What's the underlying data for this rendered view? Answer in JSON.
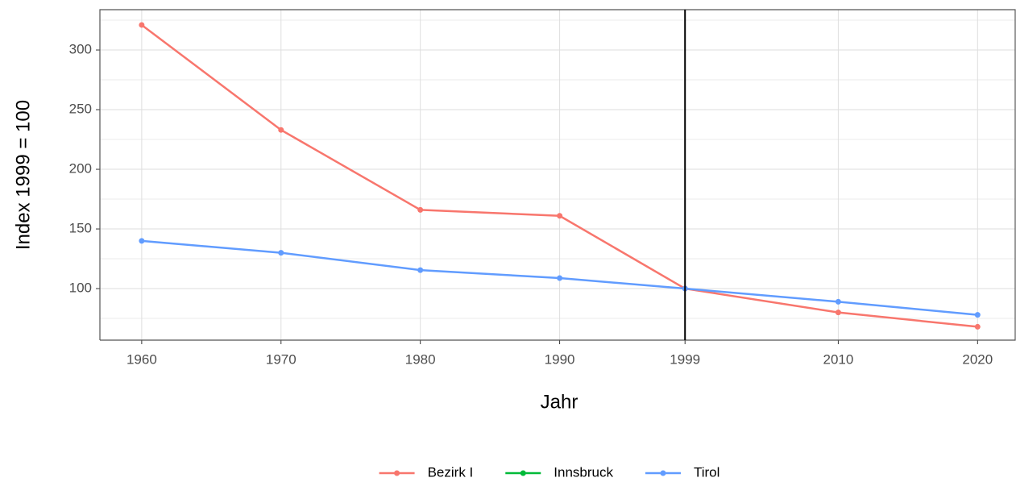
{
  "chart_data": {
    "type": "line",
    "x_label": "Jahr",
    "y_label": "Index 1999 = 100",
    "x": [
      1960,
      1970,
      1980,
      1990,
      1999,
      2010,
      2020
    ],
    "series": [
      {
        "name": "Bezirk I",
        "color": "#f8766d",
        "values": [
          321,
          233,
          166,
          161,
          100,
          80,
          68
        ]
      },
      {
        "name": "Innsbruck",
        "color": "#00ba38",
        "values": [
          null,
          null,
          null,
          null,
          null,
          null,
          null
        ]
      },
      {
        "name": "Tirol",
        "color": "#619cff",
        "values": [
          140,
          130,
          115.5,
          108.8,
          100,
          89,
          78
        ]
      }
    ],
    "xlim": [
      1957,
      2022.7
    ],
    "xticks": [
      1960,
      1970,
      1980,
      1990,
      1999,
      2010,
      2020
    ],
    "ylim": [
      56.8,
      333.8
    ],
    "yticks": [
      100,
      150,
      200,
      250,
      300
    ],
    "vline": 1999,
    "grid": true,
    "legend": "bottom"
  }
}
